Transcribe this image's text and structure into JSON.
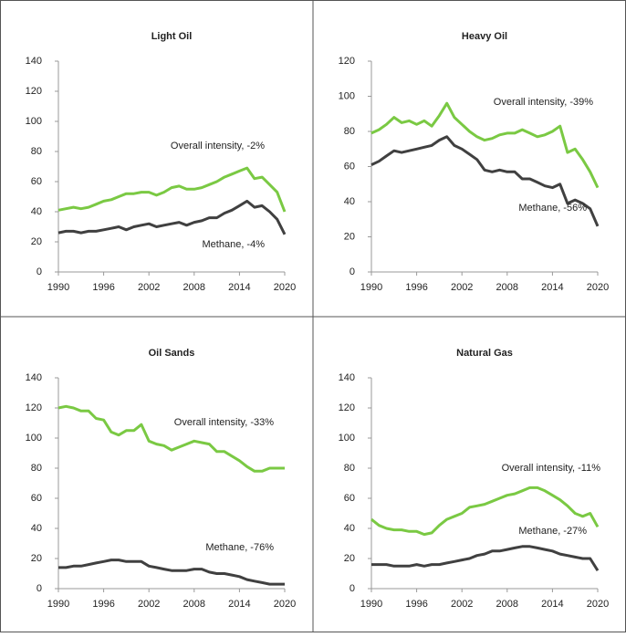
{
  "chart_data": [
    {
      "type": "line",
      "title": "Light Oil",
      "x": [
        1990,
        1991,
        1992,
        1993,
        1994,
        1995,
        1996,
        1997,
        1998,
        1999,
        2000,
        2001,
        2002,
        2003,
        2004,
        2005,
        2006,
        2007,
        2008,
        2009,
        2010,
        2011,
        2012,
        2013,
        2014,
        2015,
        2016,
        2017,
        2018,
        2019,
        2020
      ],
      "series": [
        {
          "name": "Overall intensity, -2%",
          "color": "#7ac943",
          "values": [
            41,
            42,
            43,
            42,
            43,
            45,
            47,
            48,
            50,
            52,
            52,
            53,
            53,
            51,
            53,
            56,
            57,
            55,
            55,
            56,
            58,
            60,
            63,
            65,
            67,
            69,
            62,
            63,
            58,
            53,
            40
          ]
        },
        {
          "name": "Methane, -4%",
          "color": "#404040",
          "values": [
            26,
            27,
            27,
            26,
            27,
            27,
            28,
            29,
            30,
            28,
            30,
            31,
            32,
            30,
            31,
            32,
            33,
            31,
            33,
            34,
            36,
            36,
            39,
            41,
            44,
            47,
            43,
            44,
            40,
            35,
            25
          ]
        }
      ],
      "xlim": [
        1990,
        2020
      ],
      "xticks": [
        1990,
        1996,
        2002,
        2008,
        2014,
        2020
      ],
      "ylim": [
        0,
        140
      ],
      "yticks": [
        0,
        20,
        40,
        60,
        80,
        100,
        120,
        140
      ]
    },
    {
      "type": "line",
      "title": "Heavy Oil",
      "x": [
        1990,
        1991,
        1992,
        1993,
        1994,
        1995,
        1996,
        1997,
        1998,
        1999,
        2000,
        2001,
        2002,
        2003,
        2004,
        2005,
        2006,
        2007,
        2008,
        2009,
        2010,
        2011,
        2012,
        2013,
        2014,
        2015,
        2016,
        2017,
        2018,
        2019,
        2020
      ],
      "series": [
        {
          "name": "Overall intensity, -39%",
          "color": "#7ac943",
          "values": [
            79,
            81,
            84,
            88,
            85,
            86,
            84,
            86,
            83,
            89,
            96,
            88,
            84,
            80,
            77,
            75,
            76,
            78,
            79,
            79,
            81,
            79,
            77,
            78,
            80,
            83,
            68,
            70,
            64,
            57,
            48
          ]
        },
        {
          "name": "Methane, -56%",
          "color": "#404040",
          "values": [
            61,
            63,
            66,
            69,
            68,
            69,
            70,
            71,
            72,
            75,
            77,
            72,
            70,
            67,
            64,
            58,
            57,
            58,
            57,
            57,
            53,
            53,
            51,
            49,
            48,
            50,
            39,
            41,
            39,
            36,
            26
          ]
        }
      ],
      "xlim": [
        1990,
        2020
      ],
      "xticks": [
        1990,
        1996,
        2002,
        2008,
        2014,
        2020
      ],
      "ylim": [
        0,
        120
      ],
      "yticks": [
        0,
        20,
        40,
        60,
        80,
        100,
        120
      ]
    },
    {
      "type": "line",
      "title": "Oil Sands",
      "x": [
        1990,
        1991,
        1992,
        1993,
        1994,
        1995,
        1996,
        1997,
        1998,
        1999,
        2000,
        2001,
        2002,
        2003,
        2004,
        2005,
        2006,
        2007,
        2008,
        2009,
        2010,
        2011,
        2012,
        2013,
        2014,
        2015,
        2016,
        2017,
        2018,
        2019,
        2020
      ],
      "series": [
        {
          "name": "Overall intensity, -33%",
          "color": "#7ac943",
          "values": [
            120,
            121,
            120,
            118,
            118,
            113,
            112,
            104,
            102,
            105,
            105,
            109,
            98,
            96,
            95,
            92,
            94,
            96,
            98,
            97,
            96,
            91,
            91,
            88,
            85,
            81,
            78,
            78,
            80,
            80,
            80
          ]
        },
        {
          "name": "Methane, -76%",
          "color": "#404040",
          "values": [
            14,
            14,
            15,
            15,
            16,
            17,
            18,
            19,
            19,
            18,
            18,
            18,
            15,
            14,
            13,
            12,
            12,
            12,
            13,
            13,
            11,
            10,
            10,
            9,
            8,
            6,
            5,
            4,
            3,
            3,
            3
          ]
        }
      ],
      "xlim": [
        1990,
        2020
      ],
      "xticks": [
        1990,
        1996,
        2002,
        2008,
        2014,
        2020
      ],
      "ylim": [
        0,
        140
      ],
      "yticks": [
        0,
        20,
        40,
        60,
        80,
        100,
        120,
        140
      ]
    },
    {
      "type": "line",
      "title": "Natural Gas",
      "x": [
        1990,
        1991,
        1992,
        1993,
        1994,
        1995,
        1996,
        1997,
        1998,
        1999,
        2000,
        2001,
        2002,
        2003,
        2004,
        2005,
        2006,
        2007,
        2008,
        2009,
        2010,
        2011,
        2012,
        2013,
        2014,
        2015,
        2016,
        2017,
        2018,
        2019,
        2020
      ],
      "series": [
        {
          "name": "Overall intensity, -11%",
          "color": "#7ac943",
          "values": [
            46,
            42,
            40,
            39,
            39,
            38,
            38,
            36,
            37,
            42,
            46,
            48,
            50,
            54,
            55,
            56,
            58,
            60,
            62,
            63,
            65,
            67,
            67,
            65,
            62,
            59,
            55,
            50,
            48,
            50,
            41
          ]
        },
        {
          "name": "Methane, -27%",
          "color": "#404040",
          "values": [
            16,
            16,
            16,
            15,
            15,
            15,
            16,
            15,
            16,
            16,
            17,
            18,
            19,
            20,
            22,
            23,
            25,
            25,
            26,
            27,
            28,
            28,
            27,
            26,
            25,
            23,
            22,
            21,
            20,
            20,
            12
          ]
        }
      ],
      "xlim": [
        1990,
        2020
      ],
      "xticks": [
        1990,
        1996,
        2002,
        2008,
        2014,
        2020
      ],
      "ylim": [
        0,
        140
      ],
      "yticks": [
        0,
        20,
        40,
        60,
        80,
        100,
        120,
        140
      ]
    }
  ]
}
